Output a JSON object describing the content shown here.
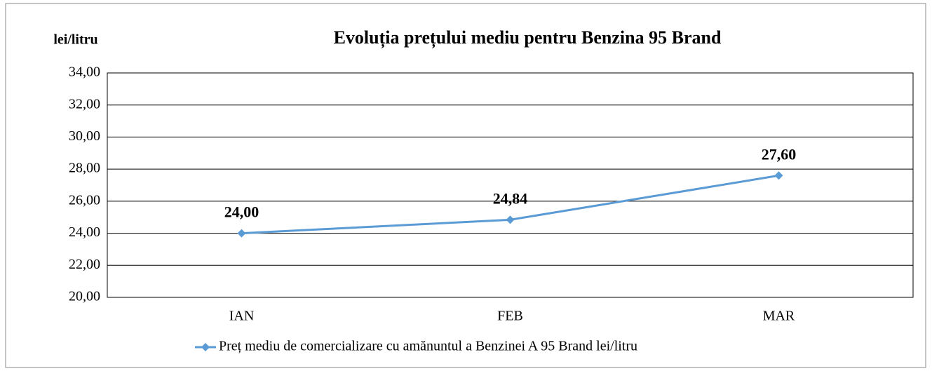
{
  "chart_data": {
    "type": "line",
    "title": "Evoluția prețului mediu pentru Benzina 95 Brand",
    "y_label": "lei/litru",
    "categories": [
      "IAN",
      "FEB",
      "MAR"
    ],
    "series": [
      {
        "name": "Preț mediu de comercializare cu amănuntul a Benzinei A 95 Brand lei/litru",
        "color": "#5b9bd5",
        "values": [
          24.0,
          24.84,
          27.6
        ],
        "value_labels": [
          "24,00",
          "24,84",
          "27,60"
        ]
      }
    ],
    "ylim": [
      20,
      34
    ],
    "yticks": [
      {
        "value": 20,
        "label": "20,00"
      },
      {
        "value": 22,
        "label": "22,00"
      },
      {
        "value": 24,
        "label": "24,00"
      },
      {
        "value": 26,
        "label": "26,00"
      },
      {
        "value": 28,
        "label": "28,00"
      },
      {
        "value": 30,
        "label": "30,00"
      },
      {
        "value": 32,
        "label": "32,00"
      },
      {
        "value": 34,
        "label": "34,00"
      }
    ],
    "grid": true,
    "legend": "bottom"
  }
}
